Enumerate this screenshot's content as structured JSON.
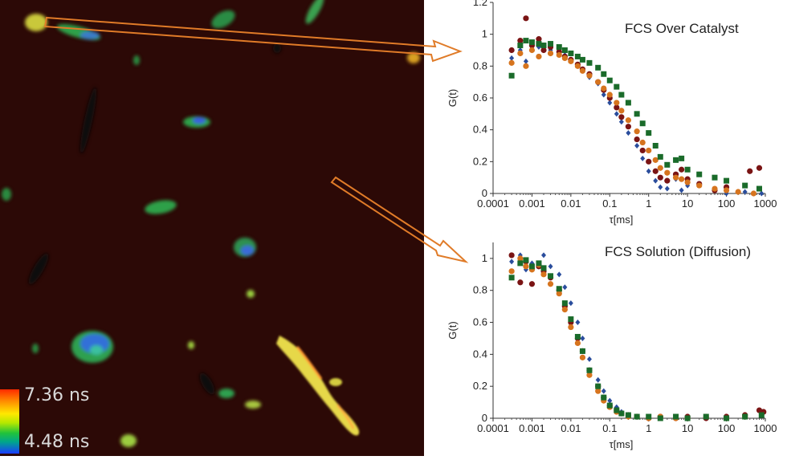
{
  "colorbar": {
    "max_label": "7.36 ns",
    "min_label": "4.48 ns"
  },
  "chart_data": [
    {
      "type": "scatter",
      "title": "FCS Over Catalyst",
      "xlabel": "τ[ms]",
      "ylabel": "G(t)",
      "xscale": "log",
      "xlim": [
        0.0001,
        1000
      ],
      "ylim": [
        0,
        1.2
      ],
      "xticks": [
        "0.0001",
        "0.001",
        "0.01",
        "0.1",
        "1",
        "10",
        "100",
        "1000"
      ],
      "yticks": [
        "0",
        "0.2",
        "0.4",
        "0.6",
        "0.8",
        "1",
        "1.2"
      ],
      "grid": false,
      "legend": "none",
      "series": [
        {
          "color": "#2a4d9c",
          "marker": "diamond",
          "x": [
            0.0003,
            0.0005,
            0.0007,
            0.001,
            0.0015,
            0.002,
            0.003,
            0.005,
            0.007,
            0.01,
            0.015,
            0.02,
            0.03,
            0.05,
            0.07,
            0.1,
            0.15,
            0.2,
            0.3,
            0.5,
            0.7,
            1,
            1.5,
            2,
            3,
            5,
            7,
            10,
            20,
            50,
            100,
            300,
            800
          ],
          "y": [
            0.85,
            0.9,
            0.83,
            0.95,
            0.92,
            0.93,
            0.9,
            0.88,
            0.87,
            0.84,
            0.8,
            0.78,
            0.73,
            0.69,
            0.62,
            0.57,
            0.5,
            0.45,
            0.38,
            0.3,
            0.22,
            0.14,
            0.08,
            0.04,
            0.03,
            0.09,
            0.02,
            0.05,
            0.12,
            0.02,
            0.0,
            0.01,
            0.0
          ]
        },
        {
          "color": "#7a1414",
          "marker": "circle",
          "x": [
            0.0003,
            0.0005,
            0.0007,
            0.001,
            0.0015,
            0.002,
            0.003,
            0.005,
            0.007,
            0.01,
            0.015,
            0.02,
            0.03,
            0.05,
            0.07,
            0.1,
            0.15,
            0.2,
            0.3,
            0.5,
            0.7,
            1,
            1.5,
            2,
            3,
            5,
            7,
            10,
            20,
            50,
            100,
            400,
            700
          ],
          "y": [
            0.9,
            0.96,
            1.1,
            0.93,
            0.97,
            0.9,
            0.92,
            0.89,
            0.86,
            0.84,
            0.81,
            0.78,
            0.75,
            0.7,
            0.65,
            0.6,
            0.54,
            0.48,
            0.42,
            0.34,
            0.27,
            0.2,
            0.14,
            0.1,
            0.08,
            0.12,
            0.15,
            0.09,
            0.06,
            0.02,
            0.04,
            0.14,
            0.16
          ]
        },
        {
          "color": "#d6741e",
          "marker": "circle",
          "x": [
            0.0003,
            0.0005,
            0.0007,
            0.001,
            0.0015,
            0.002,
            0.003,
            0.005,
            0.007,
            0.01,
            0.015,
            0.02,
            0.03,
            0.05,
            0.07,
            0.1,
            0.15,
            0.2,
            0.3,
            0.5,
            0.7,
            1,
            1.5,
            2,
            3,
            5,
            7,
            10,
            20,
            50,
            100,
            200,
            500
          ],
          "y": [
            0.82,
            0.88,
            0.8,
            0.9,
            0.86,
            0.93,
            0.88,
            0.87,
            0.85,
            0.83,
            0.8,
            0.77,
            0.74,
            0.7,
            0.66,
            0.62,
            0.57,
            0.52,
            0.46,
            0.39,
            0.32,
            0.27,
            0.21,
            0.16,
            0.13,
            0.1,
            0.09,
            0.07,
            0.05,
            0.03,
            0.02,
            0.01,
            0.0
          ]
        },
        {
          "color": "#1a6b2a",
          "marker": "square",
          "x": [
            0.0003,
            0.0005,
            0.0007,
            0.001,
            0.0015,
            0.002,
            0.003,
            0.005,
            0.007,
            0.01,
            0.015,
            0.02,
            0.03,
            0.05,
            0.07,
            0.1,
            0.15,
            0.2,
            0.3,
            0.5,
            0.7,
            1,
            1.5,
            2,
            3,
            5,
            7,
            10,
            20,
            50,
            100,
            300,
            700
          ],
          "y": [
            0.74,
            0.93,
            0.96,
            0.95,
            0.94,
            0.93,
            0.94,
            0.92,
            0.9,
            0.88,
            0.86,
            0.84,
            0.82,
            0.79,
            0.75,
            0.71,
            0.67,
            0.62,
            0.57,
            0.5,
            0.44,
            0.38,
            0.3,
            0.23,
            0.18,
            0.21,
            0.22,
            0.15,
            0.12,
            0.1,
            0.08,
            0.05,
            0.03
          ]
        }
      ]
    },
    {
      "type": "scatter",
      "title": "FCS Solution (Diffusion)",
      "xlabel": "τ[ms]",
      "ylabel": "G(t)",
      "xscale": "log",
      "xlim": [
        0.0001,
        1000
      ],
      "ylim": [
        0,
        1.1
      ],
      "xticks": [
        "0.0001",
        "0.001",
        "0.01",
        "0.1",
        "1",
        "10",
        "100",
        "1000"
      ],
      "yticks": [
        "0",
        "0.2",
        "0.4",
        "0.6",
        "0.8",
        "1"
      ],
      "grid": false,
      "legend": "none",
      "series": [
        {
          "color": "#2a4d9c",
          "marker": "diamond",
          "x": [
            0.0003,
            0.0005,
            0.0007,
            0.001,
            0.0015,
            0.002,
            0.003,
            0.005,
            0.007,
            0.01,
            0.015,
            0.02,
            0.03,
            0.05,
            0.07,
            0.1,
            0.15,
            0.2,
            0.3,
            0.5,
            1,
            2,
            5,
            10,
            30,
            100,
            300,
            800
          ],
          "y": [
            0.98,
            1.02,
            0.93,
            0.97,
            0.96,
            1.02,
            0.95,
            0.9,
            0.82,
            0.72,
            0.6,
            0.5,
            0.37,
            0.24,
            0.17,
            0.11,
            0.07,
            0.04,
            0.02,
            0.01,
            0.01,
            0.0,
            0.01,
            0.0,
            0.01,
            0.01,
            0.02,
            0.03
          ]
        },
        {
          "color": "#7a1414",
          "marker": "circle",
          "x": [
            0.0003,
            0.0005,
            0.0007,
            0.001,
            0.0015,
            0.002,
            0.003,
            0.005,
            0.007,
            0.01,
            0.015,
            0.02,
            0.03,
            0.05,
            0.07,
            0.1,
            0.15,
            0.2,
            0.3,
            0.5,
            1,
            2,
            5,
            10,
            30,
            100,
            300,
            700,
            900
          ],
          "y": [
            1.02,
            0.85,
            0.98,
            0.84,
            0.95,
            0.92,
            0.88,
            0.8,
            0.7,
            0.6,
            0.5,
            0.42,
            0.3,
            0.2,
            0.13,
            0.08,
            0.05,
            0.03,
            0.02,
            0.01,
            0.0,
            0.01,
            0.0,
            0.01,
            0.0,
            0.01,
            0.02,
            0.05,
            0.04
          ]
        },
        {
          "color": "#d6741e",
          "marker": "circle",
          "x": [
            0.0003,
            0.0005,
            0.0007,
            0.001,
            0.0015,
            0.002,
            0.003,
            0.005,
            0.007,
            0.01,
            0.015,
            0.02,
            0.03,
            0.05,
            0.07,
            0.1,
            0.15,
            0.2,
            0.3,
            0.5,
            1,
            2,
            5,
            10,
            30,
            100,
            300
          ],
          "y": [
            0.92,
            1.0,
            0.95,
            0.93,
            0.96,
            0.9,
            0.84,
            0.78,
            0.68,
            0.57,
            0.47,
            0.38,
            0.27,
            0.17,
            0.11,
            0.07,
            0.04,
            0.03,
            0.01,
            0.01,
            0.0,
            0.01,
            0.0,
            0.0,
            0.01,
            0.0,
            0.01
          ]
        },
        {
          "color": "#1a6b2a",
          "marker": "square",
          "x": [
            0.0003,
            0.0005,
            0.0007,
            0.001,
            0.0015,
            0.002,
            0.003,
            0.005,
            0.007,
            0.01,
            0.015,
            0.02,
            0.03,
            0.05,
            0.07,
            0.1,
            0.15,
            0.2,
            0.3,
            0.5,
            1,
            2,
            5,
            10,
            30,
            100,
            300,
            800
          ],
          "y": [
            0.88,
            0.97,
            0.99,
            0.95,
            0.97,
            0.94,
            0.89,
            0.81,
            0.72,
            0.62,
            0.51,
            0.42,
            0.3,
            0.2,
            0.13,
            0.08,
            0.05,
            0.03,
            0.02,
            0.01,
            0.01,
            0.0,
            0.01,
            0.0,
            0.01,
            0.0,
            0.01,
            0.02
          ]
        }
      ]
    }
  ]
}
